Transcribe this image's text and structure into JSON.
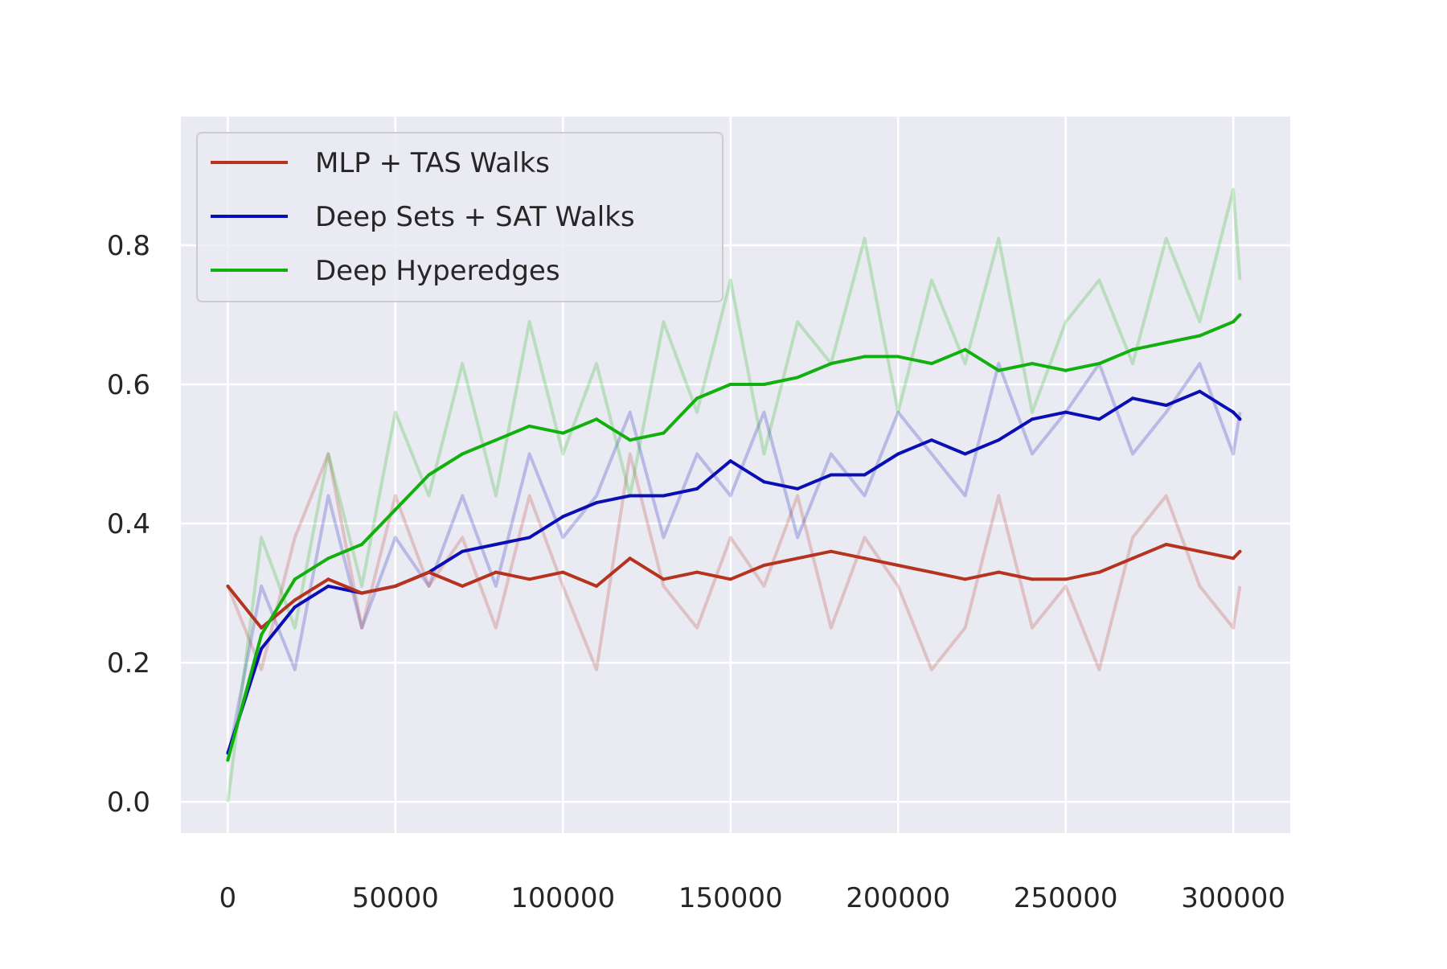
{
  "chart_data": {
    "type": "line",
    "title": "",
    "xlabel": "",
    "ylabel": "",
    "xlim": [
      -14000,
      317000
    ],
    "ylim": [
      -0.045,
      0.985
    ],
    "xticks": [
      0,
      50000,
      100000,
      150000,
      200000,
      250000,
      300000
    ],
    "xtick_labels": [
      "0",
      "50000",
      "100000",
      "150000",
      "200000",
      "250000",
      "300000"
    ],
    "yticks": [
      0.0,
      0.2,
      0.4,
      0.6,
      0.8
    ],
    "ytick_labels": [
      "0.0",
      "0.2",
      "0.4",
      "0.6",
      "0.8"
    ],
    "grid": true,
    "legend_position": "upper-left",
    "raw_alpha": 0.22,
    "series": [
      {
        "name": "MLP + TAS Walks",
        "color": "#b5331f",
        "x": [
          0,
          10000,
          20000,
          30000,
          40000,
          50000,
          60000,
          70000,
          80000,
          90000,
          100000,
          110000,
          120000,
          130000,
          140000,
          150000,
          160000,
          170000,
          180000,
          190000,
          200000,
          210000,
          220000,
          230000,
          240000,
          250000,
          260000,
          270000,
          280000,
          290000,
          300000,
          302000
        ],
        "smoothed": [
          0.31,
          0.25,
          0.29,
          0.32,
          0.3,
          0.31,
          0.33,
          0.31,
          0.33,
          0.32,
          0.33,
          0.31,
          0.35,
          0.32,
          0.33,
          0.32,
          0.34,
          0.35,
          0.36,
          0.35,
          0.34,
          0.33,
          0.32,
          0.33,
          0.32,
          0.32,
          0.33,
          0.35,
          0.37,
          0.36,
          0.35,
          0.36
        ],
        "raw": [
          0.31,
          0.19,
          0.38,
          0.5,
          0.25,
          0.44,
          0.31,
          0.38,
          0.25,
          0.44,
          0.31,
          0.19,
          0.5,
          0.31,
          0.25,
          0.38,
          0.31,
          0.44,
          0.25,
          0.38,
          0.31,
          0.19,
          0.25,
          0.44,
          0.25,
          0.31,
          0.19,
          0.38,
          0.44,
          0.31,
          0.25,
          0.31
        ]
      },
      {
        "name": "Deep Sets + SAT Walks",
        "color": "#0a0fb5",
        "x": [
          0,
          10000,
          20000,
          30000,
          40000,
          50000,
          60000,
          70000,
          80000,
          90000,
          100000,
          110000,
          120000,
          130000,
          140000,
          150000,
          160000,
          170000,
          180000,
          190000,
          200000,
          210000,
          220000,
          230000,
          240000,
          250000,
          260000,
          270000,
          280000,
          290000,
          300000,
          302000
        ],
        "smoothed": [
          0.07,
          0.22,
          0.28,
          0.31,
          0.3,
          0.31,
          0.33,
          0.36,
          0.37,
          0.38,
          0.41,
          0.43,
          0.44,
          0.44,
          0.45,
          0.49,
          0.46,
          0.45,
          0.47,
          0.47,
          0.5,
          0.52,
          0.5,
          0.52,
          0.55,
          0.56,
          0.55,
          0.58,
          0.57,
          0.59,
          0.56,
          0.55
        ],
        "raw": [
          0.06,
          0.31,
          0.19,
          0.44,
          0.25,
          0.38,
          0.31,
          0.44,
          0.31,
          0.5,
          0.38,
          0.44,
          0.56,
          0.38,
          0.5,
          0.44,
          0.56,
          0.38,
          0.5,
          0.44,
          0.56,
          0.5,
          0.44,
          0.63,
          0.5,
          0.56,
          0.63,
          0.5,
          0.56,
          0.63,
          0.5,
          0.56
        ]
      },
      {
        "name": "Deep Hyperedges",
        "color": "#12b00f",
        "x": [
          0,
          10000,
          20000,
          30000,
          40000,
          50000,
          60000,
          70000,
          80000,
          90000,
          100000,
          110000,
          120000,
          130000,
          140000,
          150000,
          160000,
          170000,
          180000,
          190000,
          200000,
          210000,
          220000,
          230000,
          240000,
          250000,
          260000,
          270000,
          280000,
          290000,
          300000,
          302000
        ],
        "smoothed": [
          0.06,
          0.24,
          0.32,
          0.35,
          0.37,
          0.42,
          0.47,
          0.5,
          0.52,
          0.54,
          0.53,
          0.55,
          0.52,
          0.53,
          0.58,
          0.6,
          0.6,
          0.61,
          0.63,
          0.64,
          0.64,
          0.63,
          0.65,
          0.62,
          0.63,
          0.62,
          0.63,
          0.65,
          0.66,
          0.67,
          0.69,
          0.7
        ],
        "raw": [
          0.0,
          0.38,
          0.25,
          0.5,
          0.31,
          0.56,
          0.44,
          0.63,
          0.44,
          0.69,
          0.5,
          0.63,
          0.44,
          0.69,
          0.56,
          0.75,
          0.5,
          0.69,
          0.63,
          0.81,
          0.56,
          0.75,
          0.63,
          0.81,
          0.56,
          0.69,
          0.75,
          0.63,
          0.81,
          0.69,
          0.88,
          0.75
        ]
      }
    ]
  }
}
